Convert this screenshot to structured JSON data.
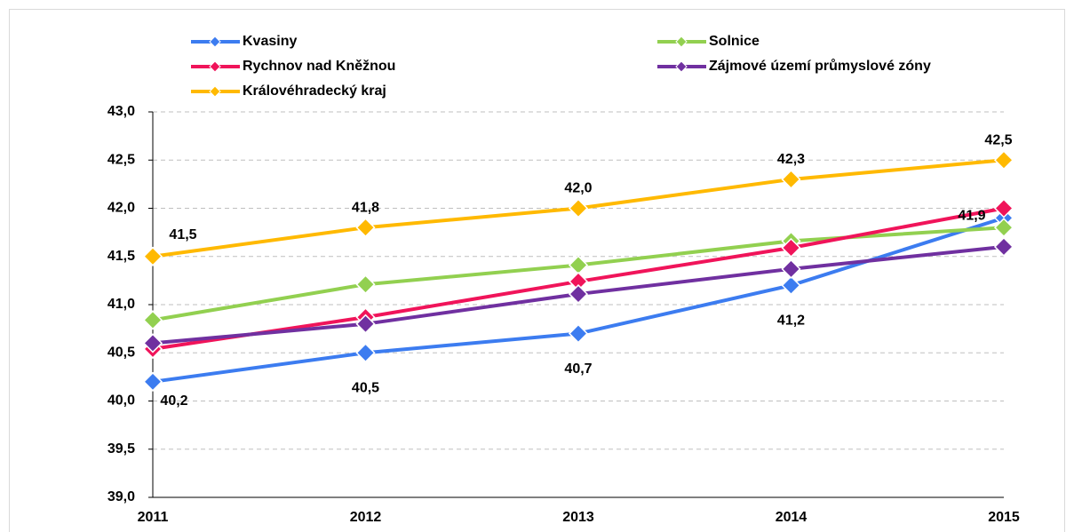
{
  "chart_data": {
    "type": "line",
    "categories": [
      "2011",
      "2012",
      "2013",
      "2014",
      "2015"
    ],
    "series": [
      {
        "name": "Kvasiny",
        "color": "#3c7cf0",
        "values": [
          40.2,
          40.5,
          40.7,
          41.2,
          41.9
        ],
        "value_labels": [
          "40,2",
          "40,5",
          "40,7",
          "41,2",
          "41,9"
        ]
      },
      {
        "name": "Solnice",
        "color": "#92d050",
        "values": [
          40.84,
          41.21,
          41.41,
          41.66,
          41.8
        ]
      },
      {
        "name": "Rychnov nad Kněžnou",
        "color": "#f0145a",
        "values": [
          40.54,
          40.87,
          41.24,
          41.59,
          42.0
        ]
      },
      {
        "name": "Zájmové území průmyslové zóny",
        "color": "#7030a0",
        "values": [
          40.6,
          40.8,
          41.11,
          41.37,
          41.6
        ]
      },
      {
        "name": "Královéhradecký kraj",
        "color": "#ffb900",
        "values": [
          41.5,
          41.8,
          42.0,
          42.3,
          42.5
        ],
        "value_labels": [
          "41,5",
          "41,8",
          "42,0",
          "42,3",
          "42,5"
        ]
      }
    ],
    "ylim": [
      39.0,
      43.0
    ],
    "yticks": [
      {
        "value": 39.0,
        "label": "39,0"
      },
      {
        "value": 39.5,
        "label": "39,5"
      },
      {
        "value": 40.0,
        "label": "40,0"
      },
      {
        "value": 40.5,
        "label": "40,5"
      },
      {
        "value": 41.0,
        "label": "41,0"
      },
      {
        "value": 41.5,
        "label": "41,5"
      },
      {
        "value": 42.0,
        "label": "42,0"
      },
      {
        "value": 42.5,
        "label": "42,5"
      },
      {
        "value": 43.0,
        "label": "43,0"
      }
    ],
    "grid": true
  }
}
